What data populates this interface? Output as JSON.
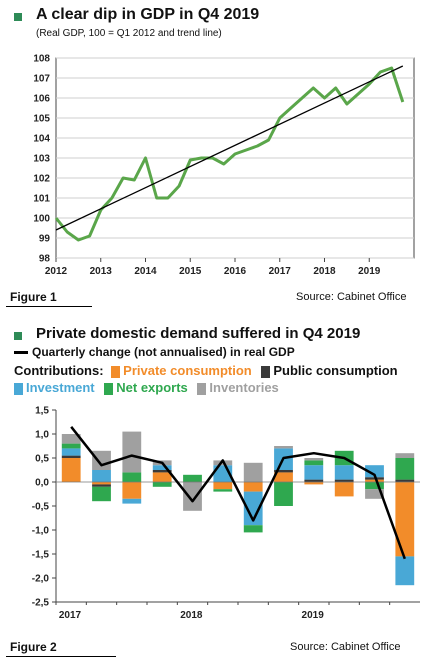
{
  "figure1": {
    "title": "A clear dip in GDP in Q4 2019",
    "subtitle": "(Real GDP, 100 = Q1 2012 and trend line)",
    "figure_label": "Figure 1",
    "source": "Source: Cabinet Office",
    "colors": {
      "gdp_line": "#5aa64a",
      "trend_line": "#000000",
      "bullet": "#2e8b57"
    }
  },
  "figure2": {
    "title": "Private domestic demand suffered in Q4 2019",
    "line_legend": "Quarterly change (not annualised) in real GDP",
    "contributions_label": "Contributions:",
    "figure_label": "Figure 2",
    "source": "Source: Cabinet Office",
    "legend": [
      {
        "name": "Private consumption",
        "color": "#f28c2a"
      },
      {
        "name": "Public consumption",
        "color": "#3a3a3a"
      },
      {
        "name": "Investment",
        "color": "#49a8d6"
      },
      {
        "name": "Net exports",
        "color": "#2fa84f"
      },
      {
        "name": "Inventories",
        "color": "#a0a0a0"
      }
    ]
  },
  "chart_data": [
    {
      "type": "line",
      "title": "A clear dip in GDP in Q4 2019",
      "subtitle": "(Real GDP, 100 = Q1 2012 and trend line)",
      "xlim": [
        2012,
        2020
      ],
      "ylim": [
        98,
        108
      ],
      "x_ticks": [
        "2012",
        "2013",
        "2014",
        "2015",
        "2016",
        "2017",
        "2018",
        "2019"
      ],
      "y_ticks": [
        "98",
        "99",
        "100",
        "101",
        "102",
        "103",
        "104",
        "105",
        "106",
        "107",
        "108"
      ],
      "grid": true,
      "series": [
        {
          "role": "gdp",
          "x": [
            2012.0,
            2012.25,
            2012.5,
            2012.75,
            2013.0,
            2013.25,
            2013.5,
            2013.75,
            2014.0,
            2014.25,
            2014.5,
            2014.75,
            2015.0,
            2015.25,
            2015.5,
            2015.75,
            2016.0,
            2016.25,
            2016.5,
            2016.75,
            2017.0,
            2017.25,
            2017.5,
            2017.75,
            2018.0,
            2018.25,
            2018.5,
            2018.75,
            2019.0,
            2019.25,
            2019.5,
            2019.75
          ],
          "y": [
            100.0,
            99.3,
            98.9,
            99.1,
            100.4,
            101.0,
            102.0,
            101.9,
            103.0,
            101.0,
            101.0,
            101.6,
            102.9,
            103.0,
            103.0,
            102.7,
            103.2,
            103.4,
            103.6,
            103.9,
            105.0,
            105.5,
            106.0,
            106.5,
            106.0,
            106.5,
            105.7,
            106.2,
            106.7,
            107.3,
            107.5,
            105.8
          ]
        },
        {
          "role": "trend",
          "x": [
            2012.0,
            2019.75
          ],
          "y": [
            99.4,
            107.6
          ]
        }
      ]
    },
    {
      "type": "bar",
      "title": "Private domestic demand suffered in Q4 2019",
      "ylim": [
        -2.5,
        1.5
      ],
      "y_ticks": [
        "1,5",
        "1,0",
        "0,5",
        "0,0",
        "-0,5",
        "-1,0",
        "-1,5",
        "-2,0",
        "-2,5"
      ],
      "year_labels": [
        "2017",
        "2018",
        "2019"
      ],
      "stacked": true,
      "quarters": [
        "2017Q1",
        "2017Q2",
        "2017Q3",
        "2017Q4",
        "2018Q1",
        "2018Q2",
        "2018Q3",
        "2018Q4",
        "2019Q1",
        "2019Q2",
        "2019Q3",
        "2019Q4"
      ],
      "series": [
        {
          "name": "Private consumption",
          "values": [
            0.5,
            -0.05,
            -0.35,
            0.2,
            0.0,
            -0.15,
            -0.2,
            0.2,
            -0.05,
            -0.3,
            0.05,
            -1.55
          ]
        },
        {
          "name": "Public consumption",
          "values": [
            0.05,
            -0.05,
            0.0,
            0.05,
            0.0,
            0.0,
            0.0,
            0.05,
            0.05,
            0.05,
            0.05,
            0.05
          ]
        },
        {
          "name": "Investment",
          "values": [
            0.15,
            0.25,
            -0.1,
            0.1,
            0.0,
            0.35,
            -0.7,
            0.45,
            0.3,
            0.3,
            0.25,
            -0.6
          ]
        },
        {
          "name": "Net exports",
          "values": [
            0.1,
            -0.3,
            0.2,
            -0.1,
            0.15,
            -0.05,
            -0.15,
            -0.5,
            0.1,
            0.3,
            -0.15,
            0.45
          ]
        },
        {
          "name": "Inventories",
          "values": [
            0.2,
            0.4,
            0.85,
            0.1,
            -0.6,
            0.1,
            0.4,
            0.05,
            0.05,
            0.0,
            -0.2,
            0.1
          ]
        }
      ],
      "line": {
        "name": "Quarterly change (not annualised) in real GDP",
        "values": [
          1.15,
          0.35,
          0.55,
          0.4,
          -0.4,
          0.45,
          -0.8,
          0.5,
          0.6,
          0.5,
          0.15,
          -1.6
        ]
      }
    }
  ]
}
